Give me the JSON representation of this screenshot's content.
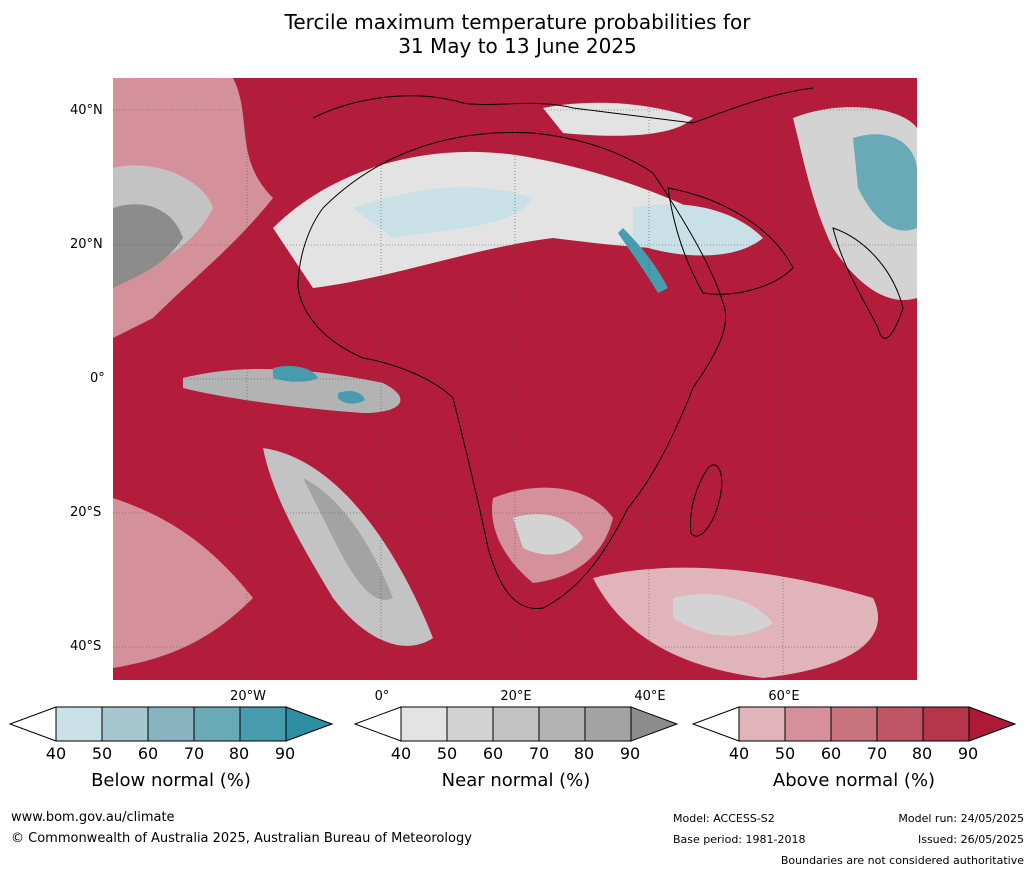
{
  "title": {
    "line1": "Tercile maximum temperature probabilities for",
    "line2": "31 May to 13 June 2025"
  },
  "map": {
    "lat_labels": [
      "40°N",
      "20°N",
      "0°",
      "20°S",
      "40°S"
    ],
    "lon_labels": [
      "20°W",
      "0°",
      "20°E",
      "40°E",
      "60°E"
    ],
    "region": "Africa"
  },
  "colorbars": [
    {
      "title": "Below normal (%)",
      "ticks": [
        "40",
        "50",
        "60",
        "70",
        "80",
        "90"
      ],
      "colors": [
        "#ffffff",
        "#c8e0e6",
        "#a6c7cf",
        "#87b4c0",
        "#6aaab7",
        "#479dae",
        "#2d8ea3"
      ]
    },
    {
      "title": "Near normal (%)",
      "ticks": [
        "40",
        "50",
        "60",
        "70",
        "80",
        "90"
      ],
      "colors": [
        "#ffffff",
        "#e3e3e3",
        "#d3d3d3",
        "#c3c3c3",
        "#b3b3b3",
        "#a3a3a3",
        "#8c8c8c"
      ]
    },
    {
      "title": "Above normal (%)",
      "ticks": [
        "40",
        "50",
        "60",
        "70",
        "80",
        "90"
      ],
      "colors": [
        "#ffffff",
        "#e0b4ba",
        "#d4919b",
        "#c9737e",
        "#bf5667",
        "#b5354b",
        "#ad1a36"
      ]
    }
  ],
  "footer": {
    "website": "www.bom.gov.au/climate",
    "copyright": "© Commonwealth of Australia 2025, Australian Bureau of Meteorology",
    "model": "Model: ACCESS-S2",
    "base_period": "Base period: 1981-2018",
    "model_run": "Model run: 24/05/2025",
    "issued": "Issued: 26/05/2025",
    "disclaimer": "Boundaries are not considered authoritative"
  }
}
